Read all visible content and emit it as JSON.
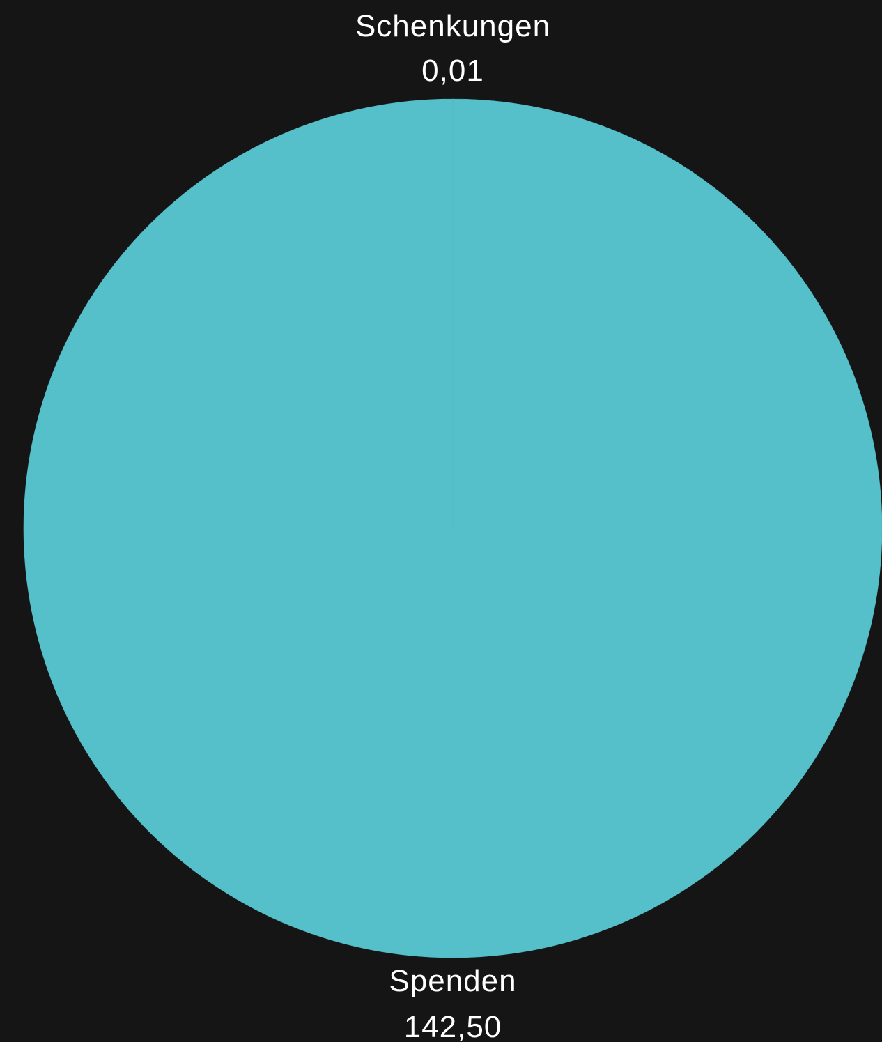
{
  "chart_data": {
    "type": "pie",
    "slices": [
      {
        "label": "Schenkungen",
        "value": 0.01,
        "value_text": "0,01",
        "color": "#56C0CA"
      },
      {
        "label": "Spenden",
        "value": 142.5,
        "value_text": "142,50",
        "color": "#56C0CA"
      }
    ],
    "legend": "none"
  },
  "colors": {
    "background": "#151516",
    "slice": "#56C0CA",
    "label": "#ffffff"
  }
}
